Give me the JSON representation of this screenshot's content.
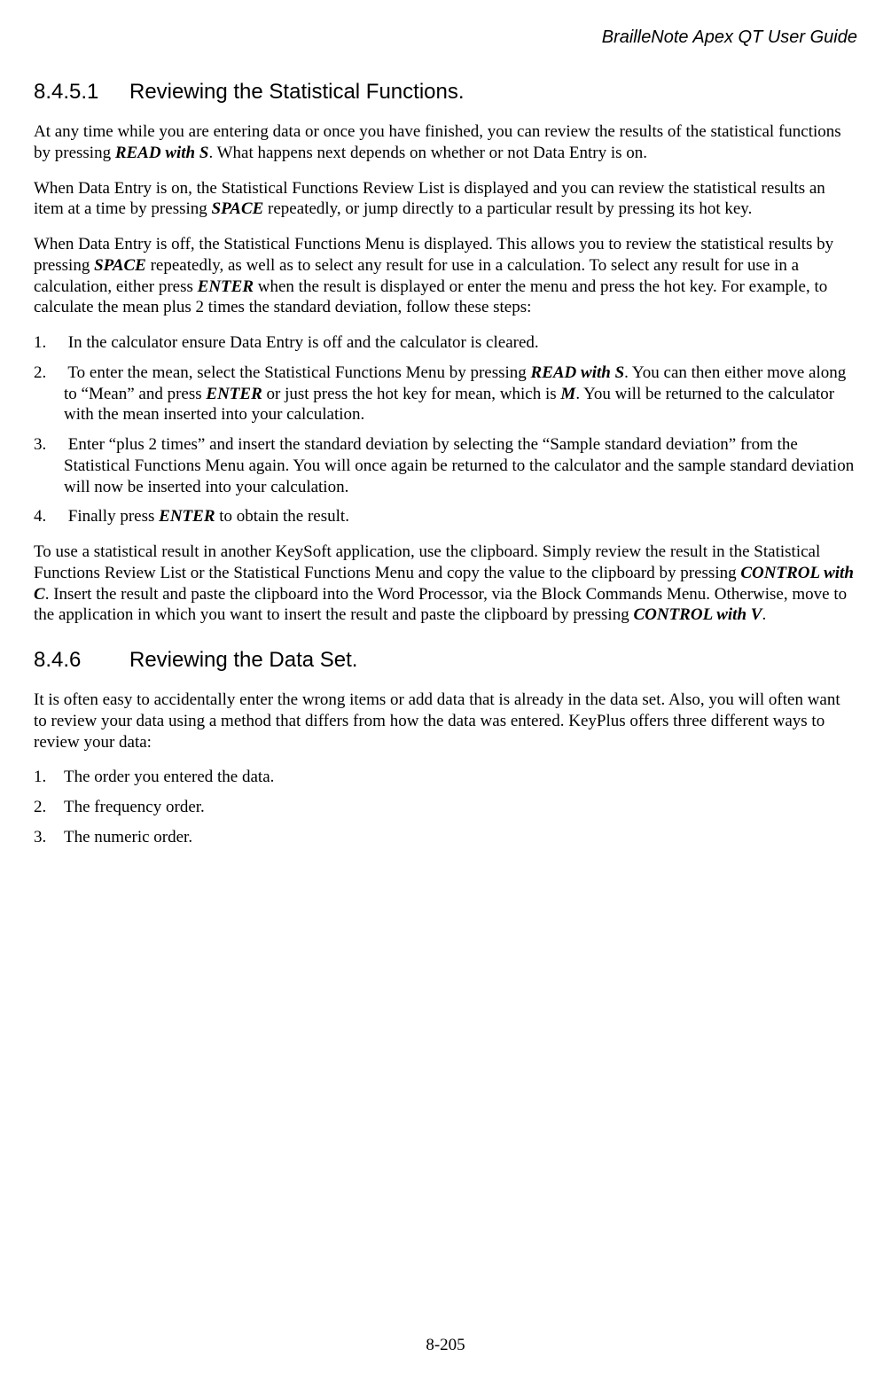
{
  "header": {
    "title": "BrailleNote Apex QT User Guide"
  },
  "section1": {
    "number": "8.4.5.1",
    "title": "Reviewing the Statistical Functions.",
    "p1_a": "At any time while you are entering data or once you have finished, you can review the results of the statistical functions by pressing ",
    "p1_k1": "READ with S",
    "p1_b": ". What happens next depends on whether or not Data Entry is on.",
    "p2_a": "When Data Entry is on, the Statistical Functions Review List is displayed and you can review the statistical results an item at a time by pressing ",
    "p2_k1": "SPACE",
    "p2_b": " repeatedly, or jump directly to a particular result by pressing its hot key.",
    "p3_a": "When Data Entry is off, the Statistical Functions Menu is displayed. This allows you to review the statistical results by pressing ",
    "p3_k1": "SPACE",
    "p3_b": " repeatedly, as well as to select any result for use in a calculation. To select any result for use in a calculation, either press ",
    "p3_k2": "ENTER",
    "p3_c": " when the result is displayed or enter the menu and press the hot key. For example, to calculate the mean plus 2 times the standard deviation, follow these steps:",
    "li1": " In the calculator ensure Data Entry is off and the calculator is cleared.",
    "li2_a": " To enter the mean, select the Statistical Functions Menu by pressing ",
    "li2_k1": "READ with S",
    "li2_b": ". You can then either move along to “Mean” and press ",
    "li2_k2": "ENTER",
    "li2_c": " or just press the hot key for mean, which is ",
    "li2_k3": "M",
    "li2_d": ". You will be returned to the calculator with the mean inserted into your calculation.",
    "li3": " Enter “plus 2 times” and insert the standard deviation by selecting the “Sample standard deviation” from the Statistical Functions Menu again. You will once again be returned to the calculator and the sample standard deviation will now be inserted into your calculation.",
    "li4_a": " Finally press ",
    "li4_k1": "ENTER",
    "li4_b": " to obtain the result.",
    "p4_a": "To use a statistical result in another KeySoft application, use the clipboard. Simply review the result in the Statistical Functions Review List or the Statistical Functions Menu and copy the value to the clipboard by pressing ",
    "p4_k1": "CONTROL with C",
    "p4_b": ". Insert the result and paste the clipboard into the Word Processor, via the Block Commands Menu. Otherwise, move to the application in which you want to insert the result and paste the clipboard by pressing ",
    "p4_k2": "CONTROL with V",
    "p4_c": "."
  },
  "section2": {
    "number": "8.4.6",
    "title": "Reviewing the Data Set.",
    "p1": "It is often easy to accidentally enter the wrong items or add data that is already in the data set. Also, you will often want to review your data using a method that differs from how the data was entered. KeyPlus offers three different ways to review your data:",
    "li1": "The order you entered the data.",
    "li2": "The frequency order.",
    "li3": "The numeric order."
  },
  "footer": {
    "page_number": "8-205"
  }
}
